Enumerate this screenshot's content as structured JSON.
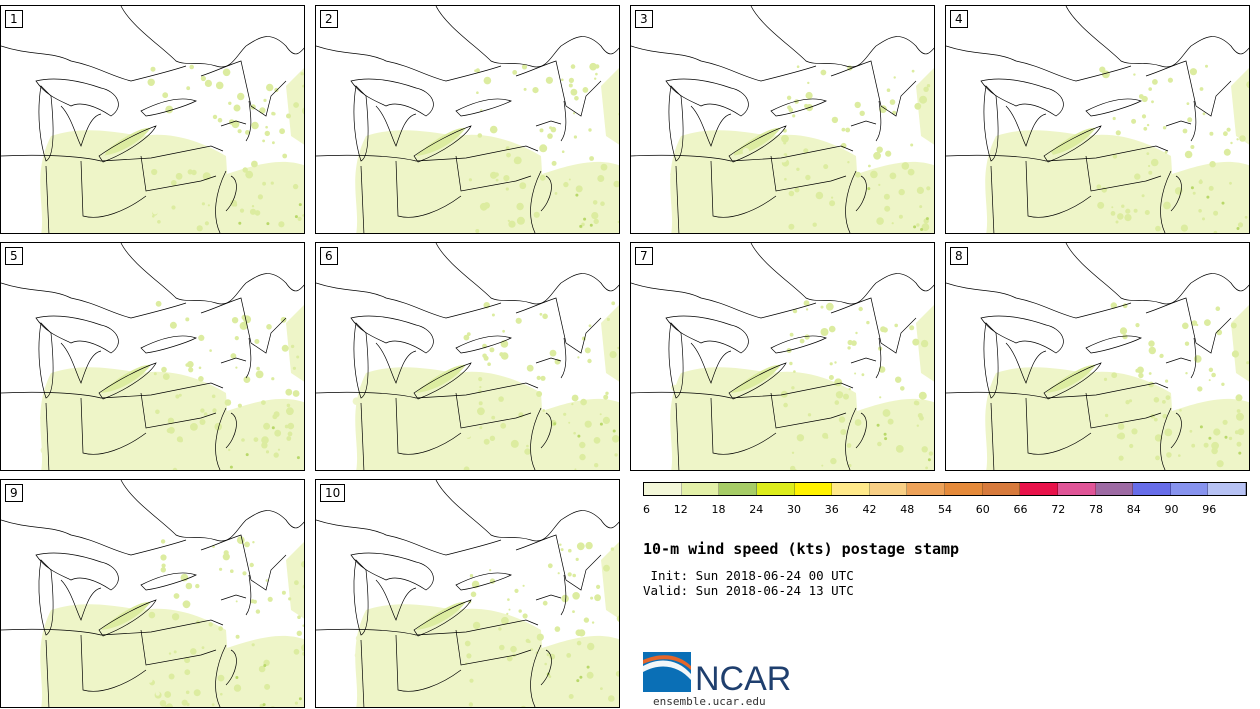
{
  "panels": [
    {
      "label": "1"
    },
    {
      "label": "2"
    },
    {
      "label": "3"
    },
    {
      "label": "4"
    },
    {
      "label": "5"
    },
    {
      "label": "6"
    },
    {
      "label": "7"
    },
    {
      "label": "8"
    },
    {
      "label": "9"
    },
    {
      "label": "10"
    }
  ],
  "colorbar": {
    "colors": [
      "#f3f7d8",
      "#e3f0a8",
      "#a6cc66",
      "#dcec1c",
      "#fff200",
      "#ffe98a",
      "#f8cf85",
      "#eda259",
      "#e58a3a",
      "#d77a3c",
      "#e8124a",
      "#e05597",
      "#9d6aa3",
      "#676de9",
      "#8793ee",
      "#b7c2f4"
    ],
    "ticks": [
      "6",
      "12",
      "18",
      "24",
      "30",
      "36",
      "42",
      "48",
      "54",
      "60",
      "66",
      "72",
      "78",
      "84",
      "90",
      "96"
    ]
  },
  "title": "10-m wind speed (kts) postage stamp",
  "init_line": " Init: Sun 2018-06-24 00 UTC",
  "valid_line": "Valid: Sun 2018-06-24 13 UTC",
  "logo": {
    "text": "NCAR",
    "url": "ensemble.ucar.edu"
  },
  "map_colors": {
    "fill_light": "#eef5c8",
    "fill_mid": "#dcecA0",
    "fill_dark": "#b9d86a",
    "line": "#000000"
  }
}
